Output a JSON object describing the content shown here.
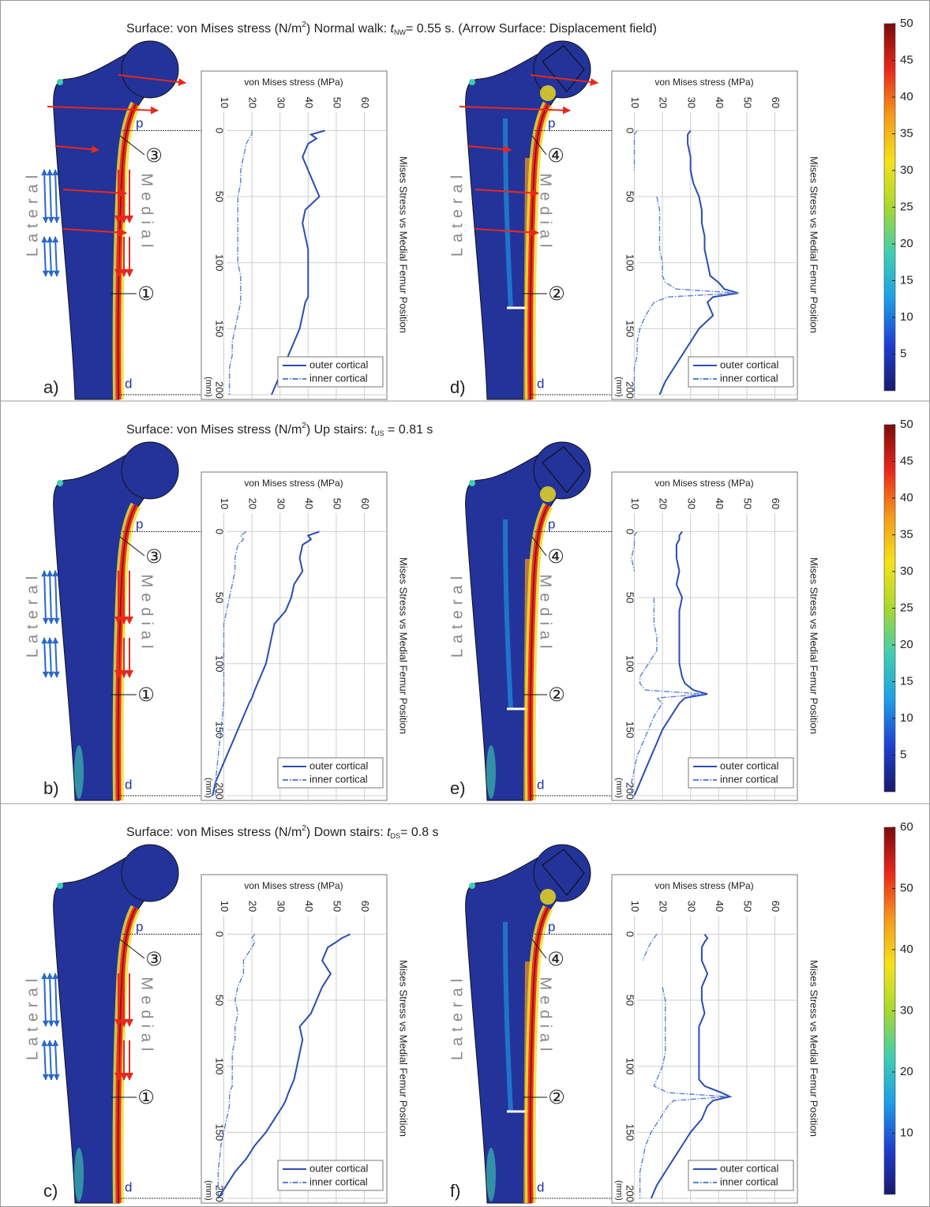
{
  "row_titles": [
    [
      "Surface: von Mises stress (N/m",
      "2",
      ") Normal walk: ",
      "t",
      "NW",
      "= 0.55 s. (Arrow Surface: Displacement field)"
    ],
    [
      "Surface: von Mises stress (N/m",
      "2",
      ") Up stairs: ",
      "t",
      "US",
      " = 0.81 s"
    ],
    [
      "Surface: von Mises stress (N/m",
      "2",
      ") Down stairs: ",
      "t",
      "DS",
      "= 0.8 s"
    ]
  ],
  "chart_data": [
    {
      "type": "line",
      "panel_label": "a)",
      "y_label": "von Mises stress (MPa)",
      "x_label": "Mises Stress vs Medial Femur Position",
      "x_unit": "(mm)",
      "x": [
        0,
        3,
        6,
        10,
        20,
        30,
        40,
        50,
        60,
        70,
        80,
        90,
        100,
        110,
        115,
        120,
        123,
        126,
        130,
        140,
        150,
        160,
        170,
        180,
        190,
        200
      ],
      "xlim": [
        -8,
        200
      ],
      "xticks": [
        0,
        50,
        100,
        150,
        200
      ],
      "ylim": [
        2,
        68
      ],
      "yticks": [
        10,
        20,
        30,
        40,
        50,
        60
      ],
      "grid": true,
      "series": [
        {
          "name": "outer cortical",
          "color": "#2b4db3",
          "line_style": "solid",
          "values": [
            46,
            41,
            43,
            40,
            38,
            40,
            42,
            44,
            39,
            38,
            39,
            40,
            40,
            40,
            40,
            40,
            40,
            40,
            39,
            38,
            37,
            35,
            33,
            31,
            29,
            27
          ]
        },
        {
          "name": "inner cortical",
          "color": "#5b7fd6",
          "line_style": "dashdot",
          "values": [
            20,
            20,
            19,
            18,
            17,
            16,
            16,
            15,
            15,
            15,
            15,
            15,
            15,
            16,
            16,
            16,
            16,
            16,
            16,
            15,
            14,
            13,
            13,
            12,
            12,
            12
          ]
        }
      ],
      "annotations": {
        "p": "p",
        "d": "d",
        "upper_marker": "③",
        "lower_marker": "①",
        "lateral": "Lateral",
        "medial": "Medial"
      }
    },
    {
      "type": "line",
      "panel_label": "b)",
      "y_label": "von Mises stress (MPa)",
      "x_label": "Mises Stress vs Medial Femur Position",
      "x_unit": "(mm)",
      "x": [
        0,
        3,
        6,
        10,
        20,
        30,
        40,
        50,
        60,
        70,
        80,
        90,
        100,
        110,
        115,
        120,
        123,
        126,
        130,
        140,
        150,
        160,
        170,
        180,
        190,
        200
      ],
      "xlim": [
        -8,
        200
      ],
      "xticks": [
        0,
        50,
        100,
        150,
        200
      ],
      "ylim": [
        2,
        68
      ],
      "yticks": [
        10,
        20,
        30,
        40,
        50,
        60
      ],
      "grid": true,
      "series": [
        {
          "name": "outer cortical",
          "color": "#2b4db3",
          "line_style": "solid",
          "values": [
            44,
            40,
            41,
            38,
            37,
            38,
            35,
            34,
            32,
            28,
            27,
            26,
            25,
            23,
            22,
            21,
            20.5,
            20,
            19,
            17,
            15,
            13,
            11,
            9,
            7,
            6
          ]
        },
        {
          "name": "inner cortical",
          "color": "#5b7fd6",
          "line_style": "dashdot",
          "values": [
            18,
            16,
            17,
            15,
            14,
            14,
            13,
            12,
            11,
            10,
            10,
            10,
            10,
            10,
            10,
            10,
            10,
            10,
            10,
            9.5,
            9,
            8.5,
            8,
            7.5,
            7,
            7
          ]
        }
      ],
      "annotations": {
        "p": "p",
        "d": "d",
        "upper_marker": "③",
        "lower_marker": "①",
        "lateral": "Lateral",
        "medial": "Medial"
      }
    },
    {
      "type": "line",
      "panel_label": "c)",
      "y_label": "von Mises stress (MPa)",
      "x_label": "Mises Stress vs Medial Femur Position",
      "x_unit": "(mm)",
      "x": [
        0,
        3,
        6,
        10,
        20,
        30,
        40,
        50,
        60,
        70,
        80,
        90,
        100,
        110,
        115,
        120,
        123,
        126,
        130,
        140,
        150,
        160,
        170,
        180,
        190,
        200
      ],
      "xlim": [
        -8,
        200
      ],
      "xticks": [
        0,
        50,
        100,
        150,
        200
      ],
      "ylim": [
        2,
        68
      ],
      "yticks": [
        10,
        20,
        30,
        40,
        50,
        60
      ],
      "grid": true,
      "series": [
        {
          "name": "outer cortical",
          "color": "#2b4db3",
          "line_style": "solid",
          "values": [
            55,
            52,
            50,
            47,
            45,
            48,
            45,
            43,
            41,
            37,
            38,
            37,
            36,
            35,
            34,
            33,
            32.5,
            32,
            31,
            28,
            25,
            21,
            18,
            14,
            11,
            8
          ]
        },
        {
          "name": "inner cortical",
          "color": "#5b7fd6",
          "line_style": "dashdot",
          "values": [
            21,
            20,
            21,
            20,
            17,
            17,
            15,
            14,
            15,
            14,
            14,
            13,
            13,
            13,
            13,
            12,
            12,
            12,
            12,
            11,
            10,
            9,
            8.5,
            8,
            8,
            8
          ]
        }
      ],
      "annotations": {
        "p": "p",
        "d": "d",
        "upper_marker": "③",
        "lower_marker": "①",
        "lateral": "Lateral",
        "medial": "Medial"
      }
    },
    {
      "type": "line",
      "panel_label": "d)",
      "y_label": "von Mises stress (MPa)",
      "x_label": "Mises Stress vs Medial Femur Position",
      "x_unit": "(mm)",
      "x": [
        0,
        3,
        6,
        10,
        20,
        30,
        40,
        50,
        60,
        70,
        80,
        90,
        100,
        110,
        115,
        120,
        123,
        126,
        130,
        140,
        150,
        160,
        170,
        180,
        190,
        200
      ],
      "xlim": [
        -8,
        200
      ],
      "xticks": [
        0,
        50,
        100,
        150,
        200
      ],
      "ylim": [
        2,
        68
      ],
      "yticks": [
        10,
        20,
        30,
        40,
        50,
        60
      ],
      "grid": true,
      "series": [
        {
          "name": "outer cortical",
          "color": "#2b4db3",
          "line_style": "solid",
          "values": [
            30,
            29,
            29,
            29,
            30,
            30,
            31,
            33,
            34,
            34,
            35,
            35,
            36,
            37,
            40,
            42,
            47,
            38,
            36,
            38,
            33,
            30,
            27,
            24,
            21,
            19
          ]
        },
        {
          "name": "inner cortical",
          "color": "#5b7fd6",
          "line_style": "dashdot",
          "values": [
            11,
            10,
            10,
            10,
            10,
            10,
            null,
            18,
            19,
            19,
            19,
            19,
            20,
            20,
            21,
            25,
            47,
            22,
            17,
            14,
            12,
            11,
            11,
            10,
            10,
            10
          ]
        }
      ],
      "annotations": {
        "p": "p",
        "d": "d",
        "upper_marker": "④",
        "lower_marker": "②",
        "lateral": "Lateral",
        "medial": "Medial"
      }
    },
    {
      "type": "line",
      "panel_label": "e)",
      "y_label": "von Mises stress (MPa)",
      "x_label": "Mises Stress vs Medial Femur Position",
      "x_unit": "(mm)",
      "x": [
        0,
        3,
        6,
        10,
        20,
        30,
        40,
        50,
        60,
        70,
        80,
        90,
        100,
        110,
        115,
        120,
        123,
        126,
        130,
        140,
        150,
        160,
        170,
        180,
        190,
        200
      ],
      "xlim": [
        -8,
        200
      ],
      "xticks": [
        0,
        50,
        100,
        150,
        200
      ],
      "ylim": [
        2,
        68
      ],
      "yticks": [
        10,
        20,
        30,
        40,
        50,
        60
      ],
      "grid": true,
      "series": [
        {
          "name": "outer cortical",
          "color": "#2b4db3",
          "line_style": "solid",
          "values": [
            27,
            26,
            26,
            25,
            25,
            26,
            25,
            27,
            26,
            26,
            26,
            26,
            26,
            27,
            28,
            31,
            36,
            28,
            26,
            23,
            20,
            18,
            16,
            14,
            12,
            10
          ]
        },
        {
          "name": "inner cortical",
          "color": "#5b7fd6",
          "line_style": "dashdot",
          "values": [
            11,
            10,
            10,
            10,
            9,
            10,
            null,
            17,
            17,
            17,
            18,
            18,
            15,
            12,
            12,
            14,
            35,
            18,
            20,
            17,
            15,
            13,
            11,
            10,
            9,
            9
          ]
        }
      ],
      "annotations": {
        "p": "p",
        "d": "d",
        "upper_marker": "④",
        "lower_marker": "②",
        "lateral": "Lateral",
        "medial": "Medial"
      }
    },
    {
      "type": "line",
      "panel_label": "f)",
      "y_label": "von Mises stress (MPa)",
      "x_label": "Mises Stress vs Medial Femur Position",
      "x_unit": "(mm)",
      "x": [
        0,
        3,
        6,
        10,
        20,
        30,
        40,
        50,
        60,
        70,
        80,
        90,
        100,
        110,
        115,
        120,
        123,
        126,
        130,
        140,
        150,
        160,
        170,
        180,
        190,
        200
      ],
      "xlim": [
        -8,
        200
      ],
      "xticks": [
        0,
        50,
        100,
        150,
        200
      ],
      "ylim": [
        2,
        68
      ],
      "yticks": [
        10,
        20,
        30,
        40,
        50,
        60
      ],
      "grid": true,
      "series": [
        {
          "name": "outer cortical",
          "color": "#2b4db3",
          "line_style": "solid",
          "values": [
            35,
            36,
            35,
            34,
            34,
            36,
            34,
            34,
            35,
            33,
            33,
            33,
            33,
            33,
            35,
            41,
            44,
            38,
            36,
            34,
            30,
            27,
            24,
            21,
            18,
            16
          ]
        },
        {
          "name": "inner cortical",
          "color": "#5b7fd6",
          "line_style": "dashdot",
          "values": [
            18,
            17,
            16,
            15,
            13,
            null,
            20,
            21,
            21,
            21,
            21,
            21,
            20,
            18,
            17,
            22,
            43,
            24,
            22,
            19,
            16,
            14,
            13,
            12,
            12,
            12
          ]
        }
      ],
      "annotations": {
        "p": "p",
        "d": "d",
        "upper_marker": "④",
        "lower_marker": "②",
        "lateral": "Lateral",
        "medial": "Medial"
      }
    },
    {
      "type": "colorbar",
      "ylim": [
        0,
        50
      ],
      "yticks": [
        5,
        10,
        15,
        20,
        25,
        30,
        35,
        40,
        45,
        50
      ],
      "colors": [
        "#1a1a6e",
        "#1f3fd0",
        "#1e9ee8",
        "#3fcfb0",
        "#a8d830",
        "#f4e21a",
        "#f59a1a",
        "#e8281c",
        "#7a0c0c"
      ]
    },
    {
      "type": "colorbar",
      "ylim": [
        0,
        50
      ],
      "yticks": [
        5,
        10,
        15,
        20,
        25,
        30,
        35,
        40,
        45,
        50
      ],
      "colors": [
        "#1a1a6e",
        "#1f3fd0",
        "#1e9ee8",
        "#3fcfb0",
        "#a8d830",
        "#f4e21a",
        "#f59a1a",
        "#e8281c",
        "#7a0c0c"
      ]
    },
    {
      "type": "colorbar",
      "ylim": [
        0,
        60
      ],
      "yticks": [
        10,
        20,
        30,
        40,
        50,
        60
      ],
      "colors": [
        "#1a1a6e",
        "#1f3fd0",
        "#1e9ee8",
        "#3fcfb0",
        "#a8d830",
        "#f4e21a",
        "#f59a1a",
        "#e8281c",
        "#7a0c0c"
      ]
    }
  ]
}
